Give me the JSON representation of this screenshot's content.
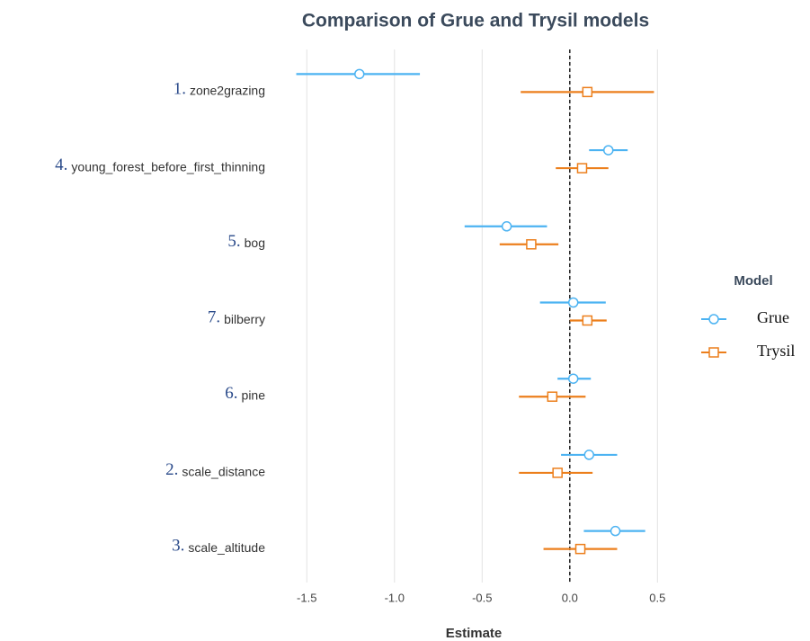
{
  "chart_data": {
    "type": "forest",
    "title": "Comparison of Grue and Trysil models",
    "xlabel": "Estimate",
    "legend_title": "Model",
    "legend": "right",
    "grid": true,
    "zero_line": 0,
    "category_numbers": [
      "1.",
      "4.",
      "5.",
      "7.",
      "6.",
      "2.",
      "3."
    ],
    "categories": [
      "zone2grazing",
      "young_forest_before_first_thinning",
      "bog",
      "bilberry",
      "pine",
      "scale_distance",
      "scale_altitude"
    ],
    "series": [
      {
        "name": "Grue",
        "color": "#4cb3f2",
        "marker": "circle",
        "values": [
          -1.2,
          0.22,
          -0.36,
          0.02,
          0.02,
          0.11,
          0.26
        ],
        "lower": [
          -1.56,
          0.11,
          -0.6,
          -0.17,
          -0.07,
          -0.05,
          0.08
        ],
        "upper": [
          -0.855,
          0.33,
          -0.13,
          0.205,
          0.12,
          0.27,
          0.43
        ]
      },
      {
        "name": "Trysil",
        "color": "#ec7f1c",
        "marker": "square",
        "values": [
          0.1,
          0.07,
          -0.22,
          0.1,
          -0.1,
          -0.07,
          0.06
        ],
        "lower": [
          -0.28,
          -0.08,
          -0.4,
          0.0,
          -0.29,
          -0.29,
          -0.15
        ],
        "upper": [
          0.48,
          0.22,
          -0.065,
          0.21,
          0.09,
          0.13,
          0.27
        ]
      }
    ],
    "xlim": [
      -1.65,
      0.57
    ],
    "xticks": [
      {
        "value": -1.5,
        "label": "-1.5"
      },
      {
        "value": -1,
        "label": "-1.0"
      },
      {
        "value": -0.5,
        "label": "-0.5"
      },
      {
        "value": 0,
        "label": "0.0"
      },
      {
        "value": 0.5,
        "label": "0.5"
      }
    ]
  }
}
